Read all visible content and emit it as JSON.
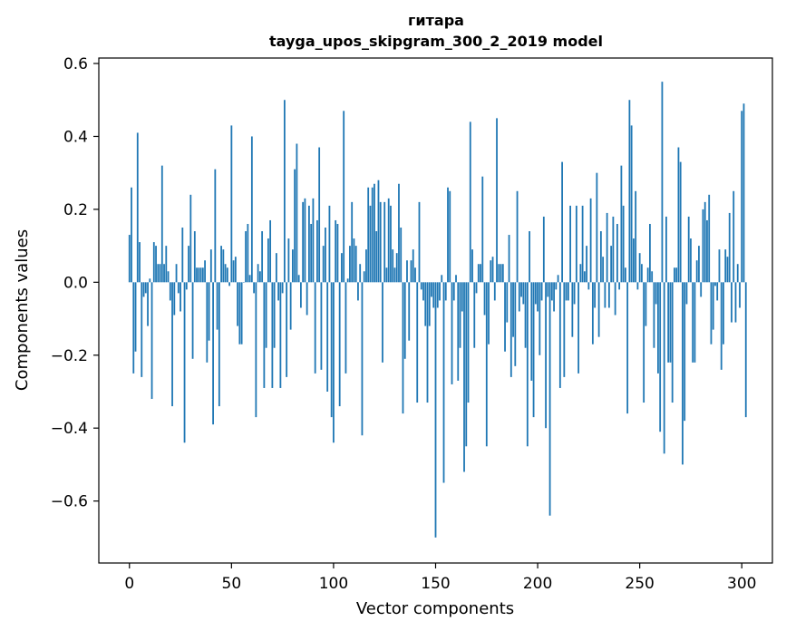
{
  "chart_data": {
    "type": "bar",
    "title": "гитара",
    "subtitle": "tayga_upos_skipgram_300_2_2019 model",
    "xlabel": "Vector components",
    "ylabel": "Components values",
    "xlim": [
      -15,
      315
    ],
    "ylim": [
      -0.77,
      0.615
    ],
    "xticks": [
      0,
      50,
      100,
      150,
      200,
      250,
      300
    ],
    "xtick_labels": [
      "0",
      "50",
      "100",
      "150",
      "200",
      "250",
      "300"
    ],
    "yticks": [
      -0.6,
      -0.4,
      -0.2,
      0.0,
      0.2,
      0.4,
      0.6
    ],
    "ytick_labels": [
      "−0.6",
      "−0.4",
      "−0.2",
      "0.0",
      "0.2",
      "0.4",
      "0.6"
    ],
    "grid": false,
    "bar_color": "#1f77b4",
    "series": [
      {
        "values": [
          0.13,
          0.26,
          -0.25,
          -0.19,
          0.41,
          0.11,
          -0.26,
          -0.04,
          -0.03,
          -0.12,
          0.01,
          -0.32,
          0.11,
          0.1,
          0.05,
          0.05,
          0.32,
          0.05,
          0.1,
          0.03,
          -0.05,
          -0.34,
          -0.09,
          0.05,
          -0.03,
          -0.08,
          0.15,
          -0.44,
          -0.02,
          0.1,
          0.24,
          -0.21,
          0.14,
          0.04,
          0.04,
          0.04,
          0.04,
          0.06,
          -0.22,
          -0.16,
          0.09,
          -0.39,
          0.31,
          -0.13,
          -0.34,
          0.1,
          0.09,
          0.05,
          0.04,
          -0.01,
          0.43,
          0.06,
          0.07,
          -0.12,
          -0.17,
          -0.17,
          0.0,
          0.14,
          0.16,
          0.02,
          0.4,
          -0.03,
          -0.37,
          0.05,
          0.03,
          0.14,
          -0.29,
          -0.18,
          0.12,
          0.17,
          -0.29,
          -0.18,
          0.08,
          -0.05,
          -0.29,
          -0.03,
          0.5,
          -0.26,
          0.12,
          -0.13,
          0.09,
          0.31,
          0.38,
          0.02,
          -0.07,
          0.22,
          0.23,
          -0.09,
          0.21,
          0.16,
          0.23,
          -0.25,
          0.17,
          0.37,
          -0.24,
          0.1,
          0.15,
          -0.3,
          0.21,
          -0.37,
          -0.44,
          0.17,
          0.16,
          -0.34,
          0.08,
          0.47,
          -0.25,
          0.01,
          0.1,
          0.22,
          0.12,
          0.1,
          -0.05,
          0.05,
          -0.42,
          0.03,
          0.09,
          0.26,
          0.21,
          0.26,
          0.27,
          0.14,
          0.28,
          0.22,
          -0.22,
          0.22,
          0.04,
          0.23,
          0.21,
          0.09,
          0.04,
          0.08,
          0.27,
          0.15,
          -0.36,
          -0.21,
          0.06,
          -0.16,
          0.06,
          0.09,
          0.04,
          -0.33,
          0.22,
          -0.02,
          -0.05,
          -0.12,
          -0.33,
          -0.12,
          -0.04,
          -0.07,
          -0.7,
          -0.07,
          -0.05,
          0.02,
          -0.55,
          -0.05,
          0.26,
          0.25,
          -0.28,
          -0.05,
          0.02,
          -0.27,
          -0.18,
          -0.08,
          -0.52,
          -0.45,
          -0.33,
          0.44,
          0.09,
          -0.18,
          -0.03,
          0.05,
          0.05,
          0.29,
          -0.09,
          -0.45,
          -0.17,
          0.06,
          0.07,
          -0.05,
          0.45,
          0.05,
          0.05,
          0.05,
          -0.19,
          -0.11,
          0.13,
          -0.26,
          -0.15,
          -0.23,
          0.25,
          -0.08,
          -0.04,
          -0.06,
          -0.18,
          -0.45,
          0.14,
          -0.27,
          -0.37,
          -0.06,
          -0.08,
          -0.2,
          -0.05,
          0.18,
          -0.4,
          -0.04,
          -0.64,
          -0.05,
          -0.08,
          -0.02,
          0.02,
          -0.29,
          0.33,
          -0.26,
          -0.05,
          -0.05,
          0.21,
          -0.15,
          -0.06,
          0.21,
          -0.25,
          0.05,
          0.21,
          0.03,
          0.1,
          -0.02,
          0.23,
          -0.17,
          -0.07,
          0.3,
          -0.15,
          0.14,
          0.07,
          -0.07,
          0.19,
          -0.07,
          0.1,
          0.18,
          -0.09,
          0.16,
          -0.02,
          0.32,
          0.21,
          0.04,
          -0.36,
          0.5,
          0.43,
          0.12,
          0.25,
          -0.02,
          0.08,
          0.05,
          -0.33,
          -0.12,
          0.04,
          0.16,
          0.03,
          -0.18,
          -0.06,
          -0.25,
          -0.41,
          0.55,
          -0.47,
          0.18,
          -0.22,
          -0.22,
          -0.33,
          0.04,
          0.04,
          0.37,
          0.33,
          -0.5,
          -0.38,
          -0.06,
          0.18,
          0.12,
          -0.22,
          -0.22,
          0.06,
          0.1,
          -0.04,
          0.2,
          0.22,
          0.17,
          0.24,
          -0.17,
          -0.13,
          -0.01,
          -0.05,
          0.09,
          -0.24,
          -0.17,
          0.09,
          0.07,
          0.19,
          -0.11,
          0.25,
          -0.11,
          0.05,
          -0.07,
          0.47,
          0.49,
          -0.37
        ]
      }
    ]
  }
}
